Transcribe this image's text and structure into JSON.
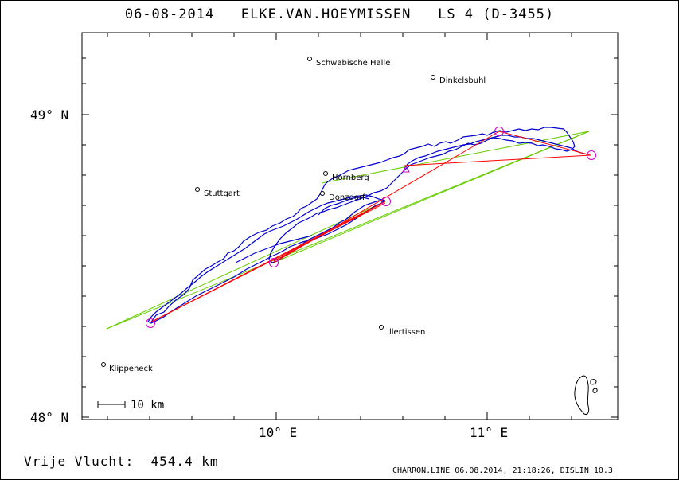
{
  "title": {
    "date": "06-08-2014",
    "pilot": "ELKE.VAN.HOEYMISSEN",
    "glider": "LS 4 (D-3455)"
  },
  "axes": {
    "x_ticks": [
      {
        "label": "10° E"
      },
      {
        "label": "11° E"
      }
    ],
    "y_ticks": [
      {
        "label": "49° N"
      },
      {
        "label": "48° N"
      }
    ]
  },
  "cities": [
    {
      "name": "Schwabische Halle"
    },
    {
      "name": "Dinkelsbuhl"
    },
    {
      "name": "Hornberg"
    },
    {
      "name": "Stuttgart"
    },
    {
      "name": "Donzdorf"
    },
    {
      "name": "Illertissen"
    },
    {
      "name": "Klippeneck"
    }
  ],
  "scale": {
    "label": "10 km"
  },
  "colors": {
    "track": "#0000cc",
    "task_legs": "#ff0000",
    "optimized_legs": "#66cc00",
    "turnpoints": "#cc00cc",
    "frame": "#000000"
  },
  "footer": {
    "distance_label": "Vrije Vlucht:",
    "distance_value": "454.4 km",
    "credit": "CHARRON.LINE 06.08.2014, 21:18:26, DISLIN 10.3"
  }
}
